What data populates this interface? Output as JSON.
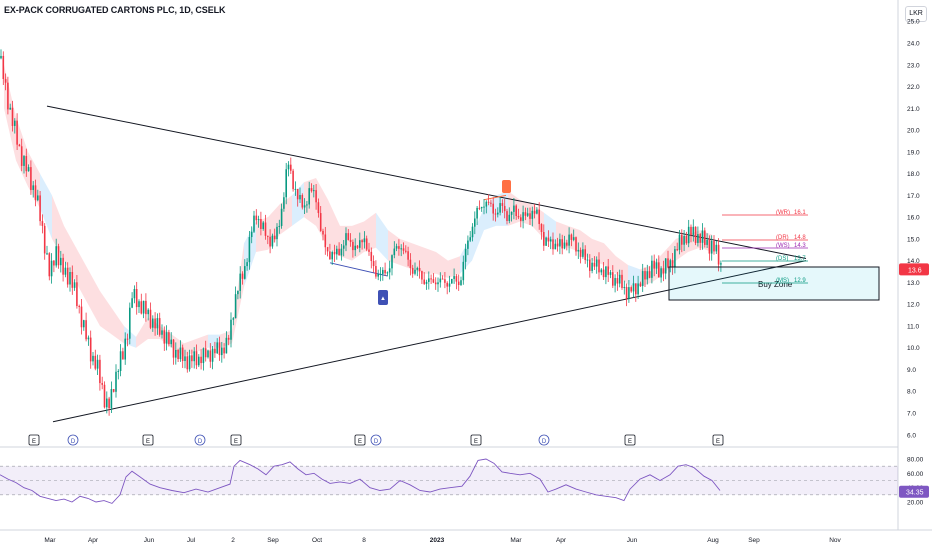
{
  "title": "EX-PACK CORRUGATED CARTONS PLC, 1D, CSELK",
  "currency": "LKR",
  "last_price_label": "13.6",
  "rsi_value_label": "34.35",
  "buy_zone_label": "Buy Zone",
  "pivot_levels": [
    {
      "tag": "(WR)",
      "value": "16.1",
      "color": "#f23645"
    },
    {
      "tag": "(DR)",
      "value": "14.8",
      "color": "#f23645"
    },
    {
      "tag": "(WS)",
      "value": "14.3",
      "color": "#9c27b0"
    },
    {
      "tag": "(DS)",
      "value": "13.7",
      "color": "#089981"
    },
    {
      "tag": "(MS)",
      "value": "12.9",
      "color": "#089981"
    }
  ],
  "event_markers": [
    "E",
    "D",
    "E",
    "D",
    "E",
    "E",
    "D",
    "E",
    "D",
    "E",
    "E"
  ],
  "news_flag": "▲",
  "chart_data": [
    {
      "type": "candlestick",
      "title": "EX-PACK CORRUGATED CARTONS PLC, 1D, CSELK",
      "xlabel": "",
      "ylabel": "",
      "x_ticks": [
        "Mar",
        "Apr",
        "Jun",
        "Jul",
        "2",
        "Sep",
        "Oct",
        "8",
        "2023",
        "Mar",
        "Apr",
        "Jun",
        "Aug",
        "Sep",
        "Nov"
      ],
      "y_ticks": [
        "6.0",
        "7.0",
        "8.0",
        "9.0",
        "10.0",
        "11.0",
        "12.0",
        "13.0",
        "14.0",
        "15.0",
        "16.0",
        "17.0",
        "18.0",
        "19.0",
        "20.0",
        "21.0",
        "22.0",
        "23.0",
        "24.0",
        "25.0"
      ],
      "ylim": [
        5.6,
        25.2
      ],
      "grid": false,
      "close_path": [
        [
          0,
          23.3
        ],
        [
          5,
          22.0
        ],
        [
          12,
          20.5
        ],
        [
          20,
          19.0
        ],
        [
          28,
          18.0
        ],
        [
          36,
          17.0
        ],
        [
          44,
          15.0
        ],
        [
          50,
          13.2
        ],
        [
          56,
          14.6
        ],
        [
          62,
          13.5
        ],
        [
          70,
          13.3
        ],
        [
          78,
          12.0
        ],
        [
          86,
          10.5
        ],
        [
          92,
          9.6
        ],
        [
          97,
          9.1
        ],
        [
          103,
          8.0
        ],
        [
          106,
          7.4
        ],
        [
          110,
          7.3
        ],
        [
          113,
          8.2
        ],
        [
          118,
          9.2
        ],
        [
          123,
          9.6
        ],
        [
          128,
          11.0
        ],
        [
          132,
          12.4
        ],
        [
          140,
          12.0
        ],
        [
          148,
          11.5
        ],
        [
          156,
          11.0
        ],
        [
          164,
          10.6
        ],
        [
          172,
          10.0
        ],
        [
          180,
          9.6
        ],
        [
          188,
          9.4
        ],
        [
          196,
          9.5
        ],
        [
          204,
          9.6
        ],
        [
          212,
          9.8
        ],
        [
          220,
          9.9
        ],
        [
          228,
          10.2
        ],
        [
          236,
          12.5
        ],
        [
          244,
          13.5
        ],
        [
          250,
          15.0
        ],
        [
          256,
          16.2
        ],
        [
          262,
          15.5
        ],
        [
          268,
          15.0
        ],
        [
          276,
          15.0
        ],
        [
          282,
          16.5
        ],
        [
          288,
          18.5
        ],
        [
          292,
          17.8
        ],
        [
          298,
          16.8
        ],
        [
          304,
          16.5
        ],
        [
          310,
          17.2
        ],
        [
          316,
          17.0
        ],
        [
          322,
          15.0
        ],
        [
          328,
          14.4
        ],
        [
          334,
          14.2
        ],
        [
          340,
          14.5
        ],
        [
          346,
          15.0
        ],
        [
          352,
          14.8
        ],
        [
          358,
          14.5
        ],
        [
          364,
          15.2
        ],
        [
          370,
          14.0
        ],
        [
          376,
          13.5
        ],
        [
          382,
          13.3
        ],
        [
          388,
          13.6
        ],
        [
          394,
          14.4
        ],
        [
          400,
          14.8
        ],
        [
          406,
          14.2
        ],
        [
          412,
          13.6
        ],
        [
          418,
          13.5
        ],
        [
          424,
          13.1
        ],
        [
          430,
          13.0
        ],
        [
          436,
          13.1
        ],
        [
          442,
          13.0
        ],
        [
          448,
          13.0
        ],
        [
          454,
          13.1
        ],
        [
          460,
          13.0
        ],
        [
          466,
          14.5
        ],
        [
          472,
          15.6
        ],
        [
          478,
          16.3
        ],
        [
          484,
          16.7
        ],
        [
          490,
          16.5
        ],
        [
          496,
          16.2
        ],
        [
          502,
          16.5
        ],
        [
          508,
          16.0
        ],
        [
          514,
          16.3
        ],
        [
          520,
          16.0
        ],
        [
          526,
          16.0
        ],
        [
          532,
          16.3
        ],
        [
          538,
          16.0
        ],
        [
          544,
          14.9
        ],
        [
          550,
          14.8
        ],
        [
          556,
          14.8
        ],
        [
          562,
          14.6
        ],
        [
          568,
          15.1
        ],
        [
          574,
          14.8
        ],
        [
          580,
          14.4
        ],
        [
          586,
          14.0
        ],
        [
          592,
          13.8
        ],
        [
          598,
          13.7
        ],
        [
          604,
          13.5
        ],
        [
          610,
          13.3
        ],
        [
          616,
          13.1
        ],
        [
          622,
          12.9
        ],
        [
          628,
          12.5
        ],
        [
          634,
          12.7
        ],
        [
          640,
          13.0
        ],
        [
          646,
          13.3
        ],
        [
          652,
          13.8
        ],
        [
          658,
          13.5
        ],
        [
          664,
          13.7
        ],
        [
          670,
          13.8
        ],
        [
          676,
          14.5
        ],
        [
          682,
          15.0
        ],
        [
          688,
          15.2
        ],
        [
          694,
          15.3
        ],
        [
          700,
          15.0
        ],
        [
          706,
          14.9
        ],
        [
          712,
          14.6
        ],
        [
          718,
          14.3
        ],
        [
          722,
          13.6
        ]
      ],
      "ichimoku_cloud": [
        [
          4,
          23.0,
          21.0
        ],
        [
          16,
          20.6,
          18.6
        ],
        [
          28,
          19.0,
          17.4
        ],
        [
          40,
          18.0,
          16.4
        ],
        [
          52,
          17.0,
          15.0
        ],
        [
          64,
          15.6,
          14.0
        ],
        [
          76,
          14.6,
          13.0
        ],
        [
          88,
          13.6,
          12.0
        ],
        [
          100,
          12.6,
          11.0
        ],
        [
          112,
          11.8,
          10.6
        ],
        [
          124,
          11.0,
          10.2
        ],
        [
          136,
          10.5,
          10.0
        ],
        [
          148,
          11.4,
          10.4
        ],
        [
          160,
          11.0,
          10.4
        ],
        [
          172,
          10.6,
          10.0
        ],
        [
          184,
          10.2,
          9.6
        ],
        [
          196,
          10.4,
          9.8
        ],
        [
          208,
          10.6,
          10.0
        ],
        [
          220,
          10.6,
          10.0
        ],
        [
          232,
          10.8,
          10.2
        ],
        [
          244,
          14.8,
          12.8
        ],
        [
          256,
          15.8,
          14.4
        ],
        [
          268,
          16.0,
          14.5
        ],
        [
          280,
          16.6,
          15.2
        ],
        [
          292,
          17.0,
          15.6
        ],
        [
          304,
          17.6,
          16.0
        ],
        [
          316,
          17.8,
          15.6
        ],
        [
          328,
          16.8,
          14.6
        ],
        [
          340,
          15.6,
          14.2
        ],
        [
          352,
          15.6,
          14.0
        ],
        [
          364,
          15.8,
          14.4
        ],
        [
          376,
          16.2,
          14.6
        ],
        [
          388,
          15.4,
          14.0
        ],
        [
          400,
          15.0,
          13.8
        ],
        [
          412,
          14.8,
          13.6
        ],
        [
          424,
          14.6,
          13.4
        ],
        [
          436,
          14.4,
          13.4
        ],
        [
          448,
          14.0,
          13.2
        ],
        [
          460,
          14.2,
          13.4
        ],
        [
          472,
          15.2,
          14.0
        ],
        [
          484,
          16.4,
          15.4
        ],
        [
          496,
          17.0,
          15.6
        ],
        [
          508,
          17.2,
          15.6
        ],
        [
          520,
          16.8,
          15.8
        ],
        [
          532,
          16.6,
          15.6
        ],
        [
          544,
          16.2,
          15.0
        ],
        [
          556,
          15.8,
          14.8
        ],
        [
          568,
          15.6,
          14.6
        ],
        [
          580,
          15.4,
          14.4
        ],
        [
          592,
          15.0,
          14.0
        ],
        [
          604,
          14.8,
          13.8
        ],
        [
          616,
          14.2,
          13.4
        ],
        [
          628,
          13.8,
          12.9
        ],
        [
          640,
          13.6,
          12.8
        ],
        [
          652,
          13.8,
          13.0
        ],
        [
          664,
          14.4,
          13.4
        ],
        [
          676,
          15.0,
          14.0
        ],
        [
          688,
          15.2,
          14.4
        ],
        [
          700,
          15.4,
          14.6
        ],
        [
          712,
          15.2,
          14.4
        ]
      ],
      "rsi": {
        "ylim": [
          0,
          100
        ],
        "y_ticks": [
          "20.00",
          "40.00",
          "60.00",
          "80.00"
        ],
        "band": [
          30,
          70
        ],
        "midline": 50,
        "values": [
          [
            0,
            58
          ],
          [
            8,
            52
          ],
          [
            16,
            47
          ],
          [
            24,
            40
          ],
          [
            32,
            36
          ],
          [
            40,
            28
          ],
          [
            48,
            25
          ],
          [
            56,
            22
          ],
          [
            64,
            24
          ],
          [
            72,
            20
          ],
          [
            80,
            28
          ],
          [
            88,
            25
          ],
          [
            96,
            20
          ],
          [
            104,
            22
          ],
          [
            112,
            18
          ],
          [
            120,
            30
          ],
          [
            126,
            55
          ],
          [
            132,
            63
          ],
          [
            140,
            55
          ],
          [
            150,
            45
          ],
          [
            160,
            40
          ],
          [
            172,
            36
          ],
          [
            184,
            33
          ],
          [
            196,
            38
          ],
          [
            208,
            34
          ],
          [
            220,
            40
          ],
          [
            230,
            45
          ],
          [
            234,
            70
          ],
          [
            240,
            78
          ],
          [
            250,
            72
          ],
          [
            258,
            66
          ],
          [
            266,
            58
          ],
          [
            274,
            70
          ],
          [
            282,
            72
          ],
          [
            290,
            76
          ],
          [
            298,
            66
          ],
          [
            306,
            58
          ],
          [
            314,
            60
          ],
          [
            322,
            52
          ],
          [
            330,
            46
          ],
          [
            340,
            48
          ],
          [
            350,
            46
          ],
          [
            360,
            52
          ],
          [
            370,
            40
          ],
          [
            380,
            36
          ],
          [
            390,
            38
          ],
          [
            400,
            50
          ],
          [
            410,
            44
          ],
          [
            420,
            36
          ],
          [
            430,
            34
          ],
          [
            440,
            38
          ],
          [
            450,
            40
          ],
          [
            462,
            42
          ],
          [
            470,
            56
          ],
          [
            478,
            78
          ],
          [
            486,
            80
          ],
          [
            494,
            74
          ],
          [
            502,
            62
          ],
          [
            510,
            60
          ],
          [
            520,
            58
          ],
          [
            530,
            60
          ],
          [
            540,
            52
          ],
          [
            548,
            34
          ],
          [
            556,
            38
          ],
          [
            566,
            44
          ],
          [
            576,
            38
          ],
          [
            586,
            34
          ],
          [
            596,
            30
          ],
          [
            606,
            28
          ],
          [
            616,
            26
          ],
          [
            624,
            22
          ],
          [
            630,
            38
          ],
          [
            640,
            52
          ],
          [
            650,
            58
          ],
          [
            660,
            50
          ],
          [
            670,
            58
          ],
          [
            678,
            70
          ],
          [
            686,
            72
          ],
          [
            694,
            68
          ],
          [
            704,
            56
          ],
          [
            712,
            50
          ],
          [
            720,
            36
          ]
        ]
      }
    }
  ]
}
